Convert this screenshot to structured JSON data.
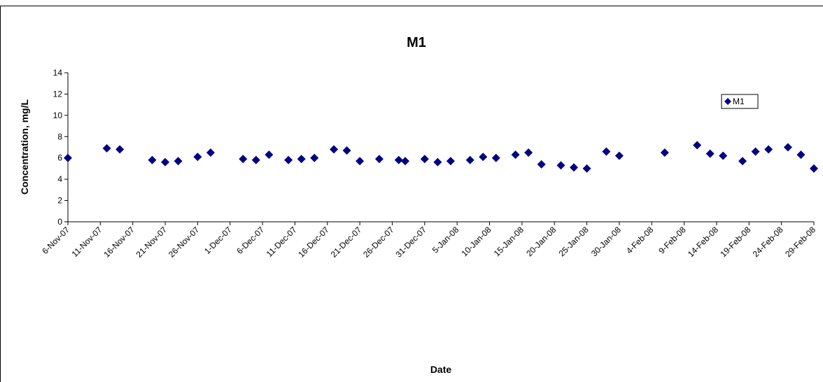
{
  "chart_data": {
    "type": "scatter",
    "title": "M1",
    "x_label": "Date",
    "y_label": "Concentration, mg/L",
    "series": [
      {
        "name": "M1",
        "color": "#000080",
        "x": [
          "2007-11-06",
          "2007-11-12",
          "2007-11-14",
          "2007-11-19",
          "2007-11-21",
          "2007-11-23",
          "2007-11-26",
          "2007-11-28",
          "2007-12-03",
          "2007-12-05",
          "2007-12-07",
          "2007-12-10",
          "2007-12-12",
          "2007-12-14",
          "2007-12-17",
          "2007-12-19",
          "2007-12-21",
          "2007-12-24",
          "2007-12-27",
          "2007-12-28",
          "2007-12-31",
          "2008-01-02",
          "2008-01-04",
          "2008-01-07",
          "2008-01-09",
          "2008-01-11",
          "2008-01-14",
          "2008-01-16",
          "2008-01-18",
          "2008-01-21",
          "2008-01-23",
          "2008-01-25",
          "2008-01-28",
          "2008-01-30",
          "2008-02-06",
          "2008-02-11",
          "2008-02-13",
          "2008-02-15",
          "2008-02-18",
          "2008-02-20",
          "2008-02-22",
          "2008-02-25",
          "2008-02-27",
          "2008-02-29"
        ],
        "values": [
          6.0,
          6.9,
          6.8,
          5.8,
          5.6,
          5.7,
          6.1,
          6.5,
          5.9,
          5.8,
          6.3,
          5.8,
          5.9,
          6.0,
          6.8,
          6.7,
          5.7,
          5.9,
          5.8,
          5.7,
          5.9,
          5.6,
          5.7,
          5.8,
          6.1,
          6.0,
          6.3,
          6.5,
          5.4,
          5.3,
          5.1,
          5.0,
          6.6,
          6.2,
          6.5,
          7.2,
          6.4,
          6.2,
          5.7,
          6.6,
          6.8,
          7.0,
          6.3,
          5.0
        ]
      }
    ],
    "xlim": [
      "2007-11-06",
      "2008-02-29"
    ],
    "xticks": [
      {
        "value": "2007-11-06",
        "label": "6-Nov-07"
      },
      {
        "value": "2007-11-11",
        "label": "11-Nov-07"
      },
      {
        "value": "2007-11-16",
        "label": "16-Nov-07"
      },
      {
        "value": "2007-11-21",
        "label": "21-Nov-07"
      },
      {
        "value": "2007-11-26",
        "label": "26-Nov-07"
      },
      {
        "value": "2007-12-01",
        "label": "1-Dec-07"
      },
      {
        "value": "2007-12-06",
        "label": "6-Dec-07"
      },
      {
        "value": "2007-12-11",
        "label": "11-Dec-07"
      },
      {
        "value": "2007-12-16",
        "label": "16-Dec-07"
      },
      {
        "value": "2007-12-21",
        "label": "21-Dec-07"
      },
      {
        "value": "2007-12-26",
        "label": "26-Dec-07"
      },
      {
        "value": "2007-12-31",
        "label": "31-Dec-07"
      },
      {
        "value": "2008-01-05",
        "label": "5-Jan-08"
      },
      {
        "value": "2008-01-10",
        "label": "10-Jan-08"
      },
      {
        "value": "2008-01-15",
        "label": "15-Jan-08"
      },
      {
        "value": "2008-01-20",
        "label": "20-Jan-08"
      },
      {
        "value": "2008-01-25",
        "label": "25-Jan-08"
      },
      {
        "value": "2008-01-30",
        "label": "30-Jan-08"
      },
      {
        "value": "2008-02-04",
        "label": "4-Feb-08"
      },
      {
        "value": "2008-02-09",
        "label": "9-Feb-08"
      },
      {
        "value": "2008-02-14",
        "label": "14-Feb-08"
      },
      {
        "value": "2008-02-19",
        "label": "19-Feb-08"
      },
      {
        "value": "2008-02-24",
        "label": "24-Feb-08"
      },
      {
        "value": "2008-02-29",
        "label": "29-Feb-08"
      }
    ],
    "ylim": [
      0,
      14
    ],
    "yticks": [
      0,
      2,
      4,
      6,
      8,
      10,
      12,
      14
    ],
    "legend": "top-right"
  }
}
